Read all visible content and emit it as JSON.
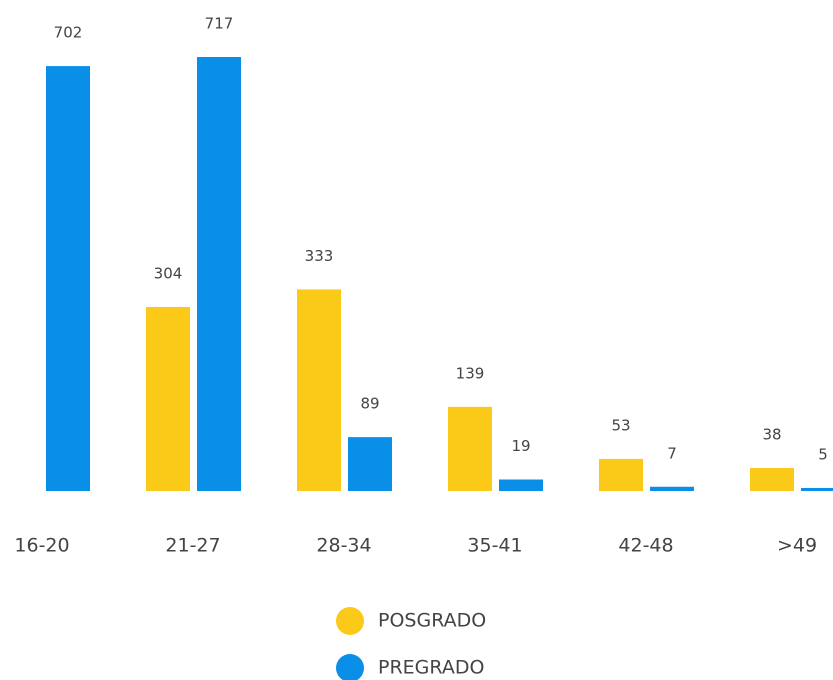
{
  "chart_data": {
    "type": "bar",
    "categories": [
      "16-20",
      "21-27",
      "28-34",
      "35-41",
      "42-48",
      ">49"
    ],
    "series": [
      {
        "name": "POSGRADO",
        "color": "#fbc918",
        "values": [
          null,
          304,
          333,
          139,
          53,
          38
        ]
      },
      {
        "name": "PREGRADO",
        "color": "#0a8fe8",
        "values": [
          702,
          717,
          89,
          19,
          7,
          5
        ]
      }
    ]
  }
}
